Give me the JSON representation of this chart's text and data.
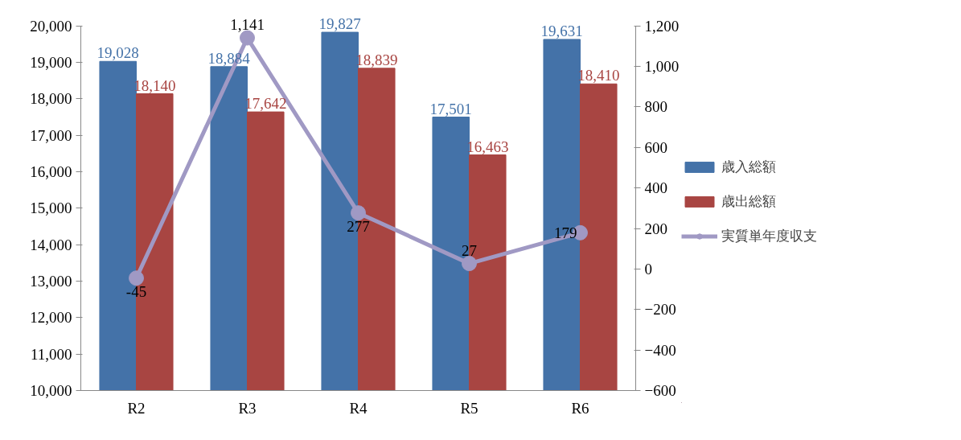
{
  "chart_data": {
    "type": "bar",
    "categories": [
      "R2",
      "R3",
      "R4",
      "R5",
      "R6"
    ],
    "series": [
      {
        "name": "歳入総額",
        "color": "#4472a8",
        "values": [
          19028,
          18884,
          19827,
          17501,
          19631
        ],
        "value_labels": [
          "19,028",
          "18,884",
          "19,827",
          "17,501",
          "19,631"
        ]
      },
      {
        "name": "歳出総額",
        "color": "#a84542",
        "values": [
          18140,
          17642,
          18839,
          16463,
          18410
        ],
        "value_labels": [
          "18,140",
          "17,642",
          "18,839",
          "16,463",
          "18,410"
        ]
      },
      {
        "name": "実質単年度収支",
        "type": "line",
        "axis": "y2",
        "color": "#a099c4",
        "values": [
          -45,
          1141,
          277,
          27,
          179
        ],
        "value_labels": [
          "-45",
          "1,141",
          "277",
          "27",
          "179"
        ]
      }
    ],
    "ylim": [
      10000,
      20000
    ],
    "yticks": [
      {
        "value": 10000,
        "label": "10,000"
      },
      {
        "value": 11000,
        "label": "11,000"
      },
      {
        "value": 12000,
        "label": "12,000"
      },
      {
        "value": 13000,
        "label": "13,000"
      },
      {
        "value": 14000,
        "label": "14,000"
      },
      {
        "value": 15000,
        "label": "15,000"
      },
      {
        "value": 16000,
        "label": "16,000"
      },
      {
        "value": 17000,
        "label": "17,000"
      },
      {
        "value": 18000,
        "label": "18,000"
      },
      {
        "value": 19000,
        "label": "19,000"
      },
      {
        "value": 20000,
        "label": "20,000"
      }
    ],
    "y2lim": [
      -600,
      1200
    ],
    "y2ticks": [
      -600,
      -400,
      -200,
      0,
      200,
      400,
      600,
      800,
      {
        "value": 1000,
        "label": "1,000"
      },
      {
        "value": 1200,
        "label": "1,200"
      }
    ],
    "grid": false,
    "legend": "right",
    "marker": "circle",
    "line_style": "solid"
  }
}
